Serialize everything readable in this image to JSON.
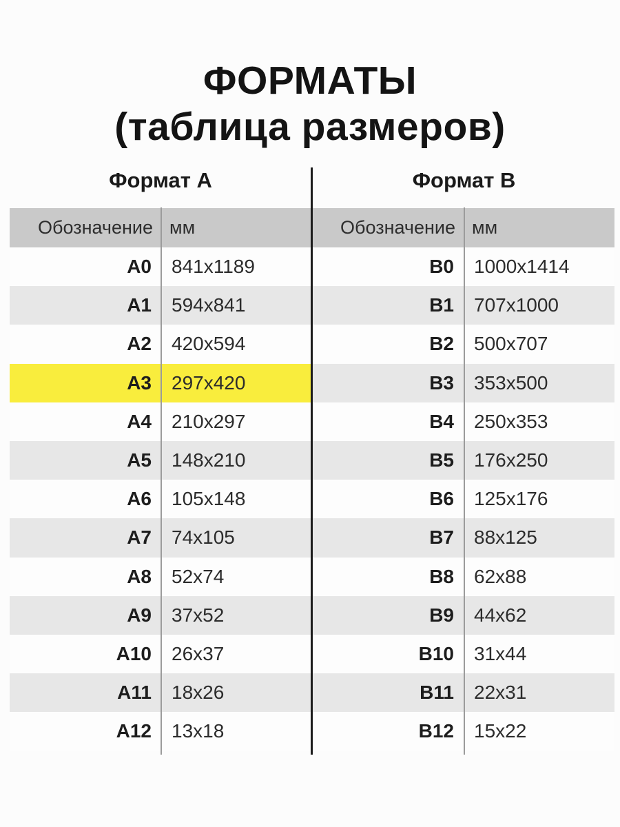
{
  "page": {
    "bg": "#fcfcfc"
  },
  "title": {
    "line1": "ФОРМАТЫ",
    "line2": "(таблица размеров)"
  },
  "columns": {
    "designation": "Обозначение",
    "mm": "мм"
  },
  "tables": [
    {
      "title": "Формат А",
      "rows": [
        {
          "code": "A0",
          "size": "841x1189"
        },
        {
          "code": "A1",
          "size": "594x841"
        },
        {
          "code": "A2",
          "size": "420x594"
        },
        {
          "code": "A3",
          "size": "297x420"
        },
        {
          "code": "A4",
          "size": "210x297"
        },
        {
          "code": "A5",
          "size": "148x210"
        },
        {
          "code": "A6",
          "size": "105x148"
        },
        {
          "code": "A7",
          "size": "74x105"
        },
        {
          "code": "A8",
          "size": "52x74"
        },
        {
          "code": "A9",
          "size": "37x52"
        },
        {
          "code": "A10",
          "size": "26x37"
        },
        {
          "code": "A11",
          "size": "18x26"
        },
        {
          "code": "A12",
          "size": "13x18"
        }
      ]
    },
    {
      "title": "Формат В",
      "rows": [
        {
          "code": "B0",
          "size": "1000x1414"
        },
        {
          "code": "B1",
          "size": "707x1000"
        },
        {
          "code": "B2",
          "size": "500x707"
        },
        {
          "code": "B3",
          "size": "353x500"
        },
        {
          "code": "B4",
          "size": "250x353"
        },
        {
          "code": "B5",
          "size": "176x250"
        },
        {
          "code": "B6",
          "size": "125x176"
        },
        {
          "code": "B7",
          "size": "88x125"
        },
        {
          "code": "B8",
          "size": "62x88"
        },
        {
          "code": "B9",
          "size": "44x62"
        },
        {
          "code": "B10",
          "size": "31x44"
        },
        {
          "code": "B11",
          "size": "22x31"
        },
        {
          "code": "B12",
          "size": "15x22"
        }
      ]
    }
  ],
  "highlight": {
    "code": "A3",
    "color": "#f9ed3d"
  },
  "colors": {
    "header_band": "#c9c9c9",
    "stripe": "#e7e7e7",
    "row_white": "#fdfdfd",
    "center_line": "#1c1c1c",
    "divider": "#9b9b9b"
  }
}
